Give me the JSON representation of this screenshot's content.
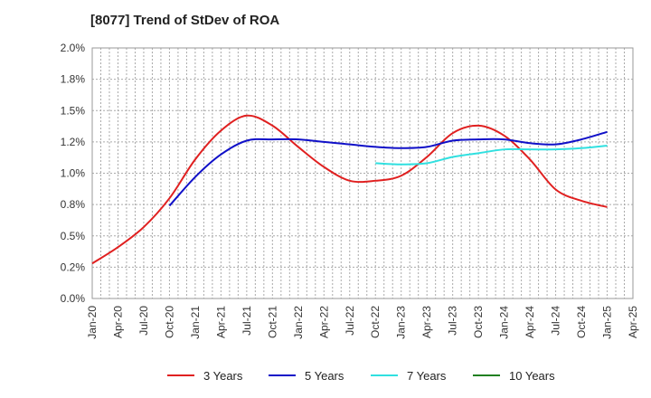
{
  "chart_data": {
    "type": "line",
    "title": "[8077]  Trend of StDev of ROA",
    "xlabel": "",
    "ylabel": "",
    "ylim": [
      0,
      2
    ],
    "y_ticks": [
      "0.0%",
      "0.2%",
      "0.5%",
      "0.8%",
      "1.0%",
      "1.2%",
      "1.5%",
      "1.8%",
      "2.0%"
    ],
    "x_ticks": [
      "Jan-20",
      "Apr-20",
      "Jul-20",
      "Oct-20",
      "Jan-21",
      "Apr-21",
      "Jul-21",
      "Oct-21",
      "Jan-22",
      "Apr-22",
      "Jul-22",
      "Oct-22",
      "Jan-23",
      "Apr-23",
      "Jul-23",
      "Oct-23",
      "Jan-24",
      "Apr-24",
      "Jul-24",
      "Oct-24",
      "Jan-25",
      "Apr-25"
    ],
    "grid": true,
    "legend_position": "bottom",
    "series": [
      {
        "name": "3 Years",
        "color": "#e02020",
        "points": [
          [
            0,
            0.28
          ],
          [
            1,
            0.41
          ],
          [
            2,
            0.57
          ],
          [
            3,
            0.8
          ],
          [
            4,
            1.11
          ],
          [
            5,
            1.34
          ],
          [
            6,
            1.46
          ],
          [
            7,
            1.38
          ],
          [
            8,
            1.21
          ],
          [
            9,
            1.05
          ],
          [
            10,
            0.94
          ],
          [
            11,
            0.94
          ],
          [
            12,
            0.98
          ],
          [
            13,
            1.13
          ],
          [
            14,
            1.32
          ],
          [
            15,
            1.38
          ],
          [
            16,
            1.3
          ],
          [
            17,
            1.11
          ],
          [
            18,
            0.87
          ],
          [
            19,
            0.78
          ],
          [
            20,
            0.73
          ]
        ]
      },
      {
        "name": "5 Years",
        "color": "#1010c8",
        "points": [
          [
            3,
            0.74
          ],
          [
            4,
            0.97
          ],
          [
            5,
            1.15
          ],
          [
            6,
            1.26
          ],
          [
            7,
            1.27
          ],
          [
            8,
            1.27
          ],
          [
            9,
            1.25
          ],
          [
            10,
            1.23
          ],
          [
            11,
            1.21
          ],
          [
            12,
            1.2
          ],
          [
            13,
            1.21
          ],
          [
            14,
            1.26
          ],
          [
            15,
            1.27
          ],
          [
            16,
            1.27
          ],
          [
            17,
            1.24
          ],
          [
            18,
            1.23
          ],
          [
            19,
            1.27
          ],
          [
            20,
            1.33
          ]
        ]
      },
      {
        "name": "7 Years",
        "color": "#30e0e0",
        "points": [
          [
            11,
            1.08
          ],
          [
            12,
            1.07
          ],
          [
            13,
            1.08
          ],
          [
            14,
            1.13
          ],
          [
            15,
            1.16
          ],
          [
            16,
            1.19
          ],
          [
            17,
            1.19
          ],
          [
            18,
            1.19
          ],
          [
            19,
            1.2
          ],
          [
            20,
            1.22
          ]
        ]
      },
      {
        "name": "10 Years",
        "color": "#208020",
        "points": []
      }
    ]
  }
}
